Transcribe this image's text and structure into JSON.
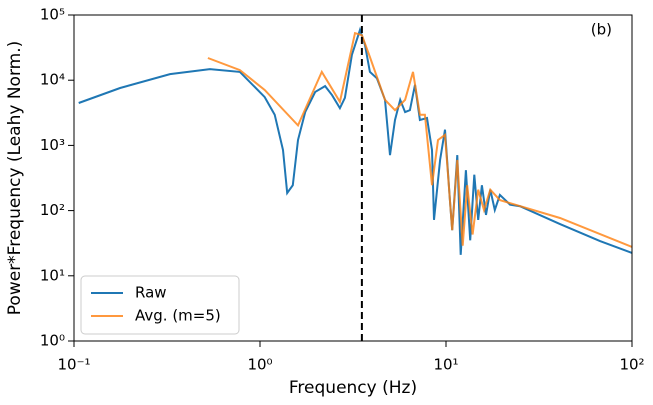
{
  "chart_data": {
    "type": "line",
    "xlabel": "Frequency (Hz)",
    "ylabel": "Power*Frequency (Leahy Norm.)",
    "annotation": "(b)",
    "xscale": "log",
    "yscale": "log",
    "xlim": [
      0.1,
      100
    ],
    "ylim": [
      1,
      100000
    ],
    "xticks": [
      {
        "value": 0.1,
        "label": "10⁻¹"
      },
      {
        "value": 1,
        "label": "10⁰"
      },
      {
        "value": 10,
        "label": "10¹"
      },
      {
        "value": 100,
        "label": "10²"
      }
    ],
    "yticks": [
      {
        "value": 1,
        "label": "10⁰"
      },
      {
        "value": 10,
        "label": "10¹"
      },
      {
        "value": 100,
        "label": "10²"
      },
      {
        "value": 1000,
        "label": "10³"
      },
      {
        "value": 10000,
        "label": "10⁴"
      },
      {
        "value": 100000,
        "label": "10⁵"
      }
    ],
    "vline": 3.53,
    "legend": "lower left",
    "series": [
      {
        "name": "Raw",
        "color": "#1f77b4",
        "x": [
          0.106,
          0.177,
          0.328,
          0.538,
          0.78,
          1.06,
          1.2,
          1.33,
          1.4,
          1.5,
          1.6,
          1.75,
          1.98,
          2.24,
          2.44,
          2.69,
          2.86,
          3.12,
          3.45,
          3.67,
          3.9,
          4.25,
          4.7,
          5.0,
          5.32,
          5.67,
          6.03,
          6.4,
          6.81,
          7.24,
          7.9,
          8.41,
          8.62,
          9.29,
          9.88,
          10.5,
          10.8,
          11.5,
          12.0,
          12.8,
          13.5,
          14.2,
          14.9,
          15.6,
          16.4,
          17.3,
          18.3,
          19.5,
          22.1,
          25,
          41,
          67.3,
          100
        ],
        "values": [
          4470,
          7600,
          12400,
          14800,
          13400,
          5500,
          2960,
          850,
          186,
          245,
          1210,
          3240,
          6620,
          8130,
          5890,
          3720,
          5370,
          24500,
          59000,
          34600,
          13400,
          10700,
          5000,
          710,
          2450,
          5000,
          3240,
          3470,
          8510,
          2450,
          2630,
          850,
          72,
          600,
          1740,
          145,
          50,
          710,
          21,
          417,
          35,
          355,
          72,
          245,
          86,
          209,
          102,
          174,
          123,
          117,
          62,
          34,
          22.4
        ]
      },
      {
        "name": "Avg. (m=5)",
        "color": "#ff7f0e",
        "x": [
          0.525,
          0.78,
          1.06,
          1.6,
          2.15,
          2.69,
          3.24,
          3.53,
          3.9,
          4.7,
          5.32,
          6.03,
          6.65,
          7.24,
          7.7,
          8.41,
          9.06,
          9.88,
          10.8,
          11.5,
          12.3,
          13.0,
          13.9,
          14.9,
          16,
          17.3,
          19.5,
          41,
          100
        ],
        "values": [
          21900,
          14300,
          7080,
          2030,
          13400,
          4660,
          52800,
          49000,
          22700,
          5000,
          3470,
          5000,
          13400,
          2960,
          2960,
          245,
          1210,
          1450,
          50,
          600,
          29,
          245,
          43,
          209,
          102,
          209,
          145,
          77,
          27.7
        ]
      }
    ]
  }
}
